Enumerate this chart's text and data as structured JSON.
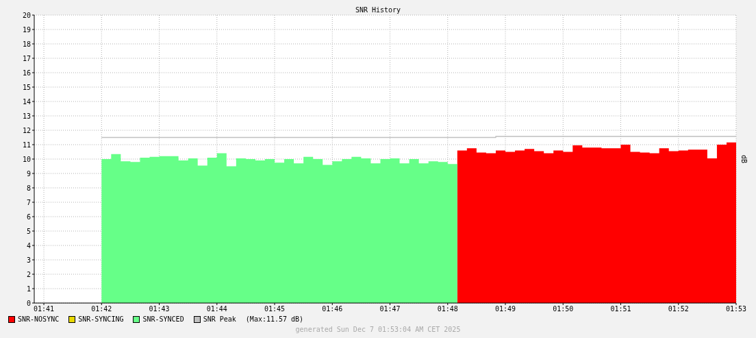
{
  "chart_data": {
    "type": "area",
    "title": "SNR History",
    "ylabel": "dB",
    "xlim": [
      "2025-12-07T01:40:50",
      "2025-12-07T01:53:00"
    ],
    "xticks": [
      {
        "value": "2025-12-07T01:41",
        "label": "01:41"
      },
      {
        "value": "2025-12-07T01:42",
        "label": "01:42"
      },
      {
        "value": "2025-12-07T01:43",
        "label": "01:43"
      },
      {
        "value": "2025-12-07T01:44",
        "label": "01:44"
      },
      {
        "value": "2025-12-07T01:45",
        "label": "01:45"
      },
      {
        "value": "2025-12-07T01:46",
        "label": "01:46"
      },
      {
        "value": "2025-12-07T01:47",
        "label": "01:47"
      },
      {
        "value": "2025-12-07T01:48",
        "label": "01:48"
      },
      {
        "value": "2025-12-07T01:49",
        "label": "01:49"
      },
      {
        "value": "2025-12-07T01:50",
        "label": "01:50"
      },
      {
        "value": "2025-12-07T01:51",
        "label": "01:51"
      },
      {
        "value": "2025-12-07T01:52",
        "label": "01:52"
      },
      {
        "value": "2025-12-07T01:53",
        "label": "01:53"
      }
    ],
    "ylim": [
      0,
      20
    ],
    "yticks": [
      0,
      1,
      2,
      3,
      4,
      5,
      6,
      7,
      8,
      9,
      10,
      11,
      12,
      13,
      14,
      15,
      16,
      17,
      18,
      19,
      20
    ],
    "grid": true,
    "legend": "bottom left",
    "series": [
      {
        "name": "SNR-NOSYNC",
        "color": "#ff0000",
        "x": [
          "2025-12-07T01:48:10",
          "2025-12-07T01:48:20",
          "2025-12-07T01:48:30",
          "2025-12-07T01:48:40",
          "2025-12-07T01:48:50",
          "2025-12-07T01:49:00",
          "2025-12-07T01:49:10",
          "2025-12-07T01:49:20",
          "2025-12-07T01:49:30",
          "2025-12-07T01:49:40",
          "2025-12-07T01:49:50",
          "2025-12-07T01:50:00",
          "2025-12-07T01:50:10",
          "2025-12-07T01:50:20",
          "2025-12-07T01:50:30",
          "2025-12-07T01:50:40",
          "2025-12-07T01:50:50",
          "2025-12-07T01:51:00",
          "2025-12-07T01:51:10",
          "2025-12-07T01:51:20",
          "2025-12-07T01:51:30",
          "2025-12-07T01:51:40",
          "2025-12-07T01:51:50",
          "2025-12-07T01:52:00",
          "2025-12-07T01:52:10",
          "2025-12-07T01:52:20",
          "2025-12-07T01:52:30",
          "2025-12-07T01:52:40",
          "2025-12-07T01:52:50",
          "2025-12-07T01:53:00"
        ],
        "values": [
          10.6,
          10.75,
          10.45,
          10.4,
          10.6,
          10.5,
          10.6,
          10.7,
          10.55,
          10.4,
          10.6,
          10.5,
          10.95,
          10.8,
          10.8,
          10.75,
          10.75,
          11.0,
          10.5,
          10.45,
          10.4,
          10.75,
          10.55,
          10.6,
          10.65,
          10.65,
          10.05,
          11.0,
          11.15,
          11.15
        ]
      },
      {
        "name": "SNR-SYNCING",
        "color": "#e8d800"
      },
      {
        "name": "SNR-SYNCED",
        "color": "#66ff88",
        "x": [
          "2025-12-07T01:42:00",
          "2025-12-07T01:42:10",
          "2025-12-07T01:42:20",
          "2025-12-07T01:42:30",
          "2025-12-07T01:42:40",
          "2025-12-07T01:42:50",
          "2025-12-07T01:43:00",
          "2025-12-07T01:43:10",
          "2025-12-07T01:43:20",
          "2025-12-07T01:43:30",
          "2025-12-07T01:43:40",
          "2025-12-07T01:43:50",
          "2025-12-07T01:44:00",
          "2025-12-07T01:44:10",
          "2025-12-07T01:44:20",
          "2025-12-07T01:44:30",
          "2025-12-07T01:44:40",
          "2025-12-07T01:44:50",
          "2025-12-07T01:45:00",
          "2025-12-07T01:45:10",
          "2025-12-07T01:45:20",
          "2025-12-07T01:45:30",
          "2025-12-07T01:45:40",
          "2025-12-07T01:45:50",
          "2025-12-07T01:46:00",
          "2025-12-07T01:46:10",
          "2025-12-07T01:46:20",
          "2025-12-07T01:46:30",
          "2025-12-07T01:46:40",
          "2025-12-07T01:46:50",
          "2025-12-07T01:47:00",
          "2025-12-07T01:47:10",
          "2025-12-07T01:47:20",
          "2025-12-07T01:47:30",
          "2025-12-07T01:47:40",
          "2025-12-07T01:47:50",
          "2025-12-07T01:48:00",
          "2025-12-07T01:48:10"
        ],
        "values": [
          10.0,
          10.35,
          9.85,
          9.8,
          10.1,
          10.15,
          10.2,
          10.2,
          9.9,
          10.05,
          9.55,
          10.1,
          10.4,
          9.5,
          10.05,
          10.0,
          9.9,
          10.0,
          9.75,
          10.0,
          9.7,
          10.15,
          10.0,
          9.6,
          9.85,
          10.0,
          10.15,
          10.05,
          9.7,
          10.0,
          10.05,
          9.7,
          10.0,
          9.7,
          9.85,
          9.8,
          9.65,
          9.65
        ]
      },
      {
        "name": "SNR Peak",
        "color": "#c0c0c0",
        "type": "step",
        "x": [
          "2025-12-07T01:42:00",
          "2025-12-07T01:48:50",
          "2025-12-07T01:53:00"
        ],
        "values": [
          11.5,
          11.57,
          11.57
        ]
      }
    ],
    "annotations": [
      "(Max:11.57 dB)",
      "generated Sun Dec  7 01:53:04 AM CET 2025"
    ]
  }
}
